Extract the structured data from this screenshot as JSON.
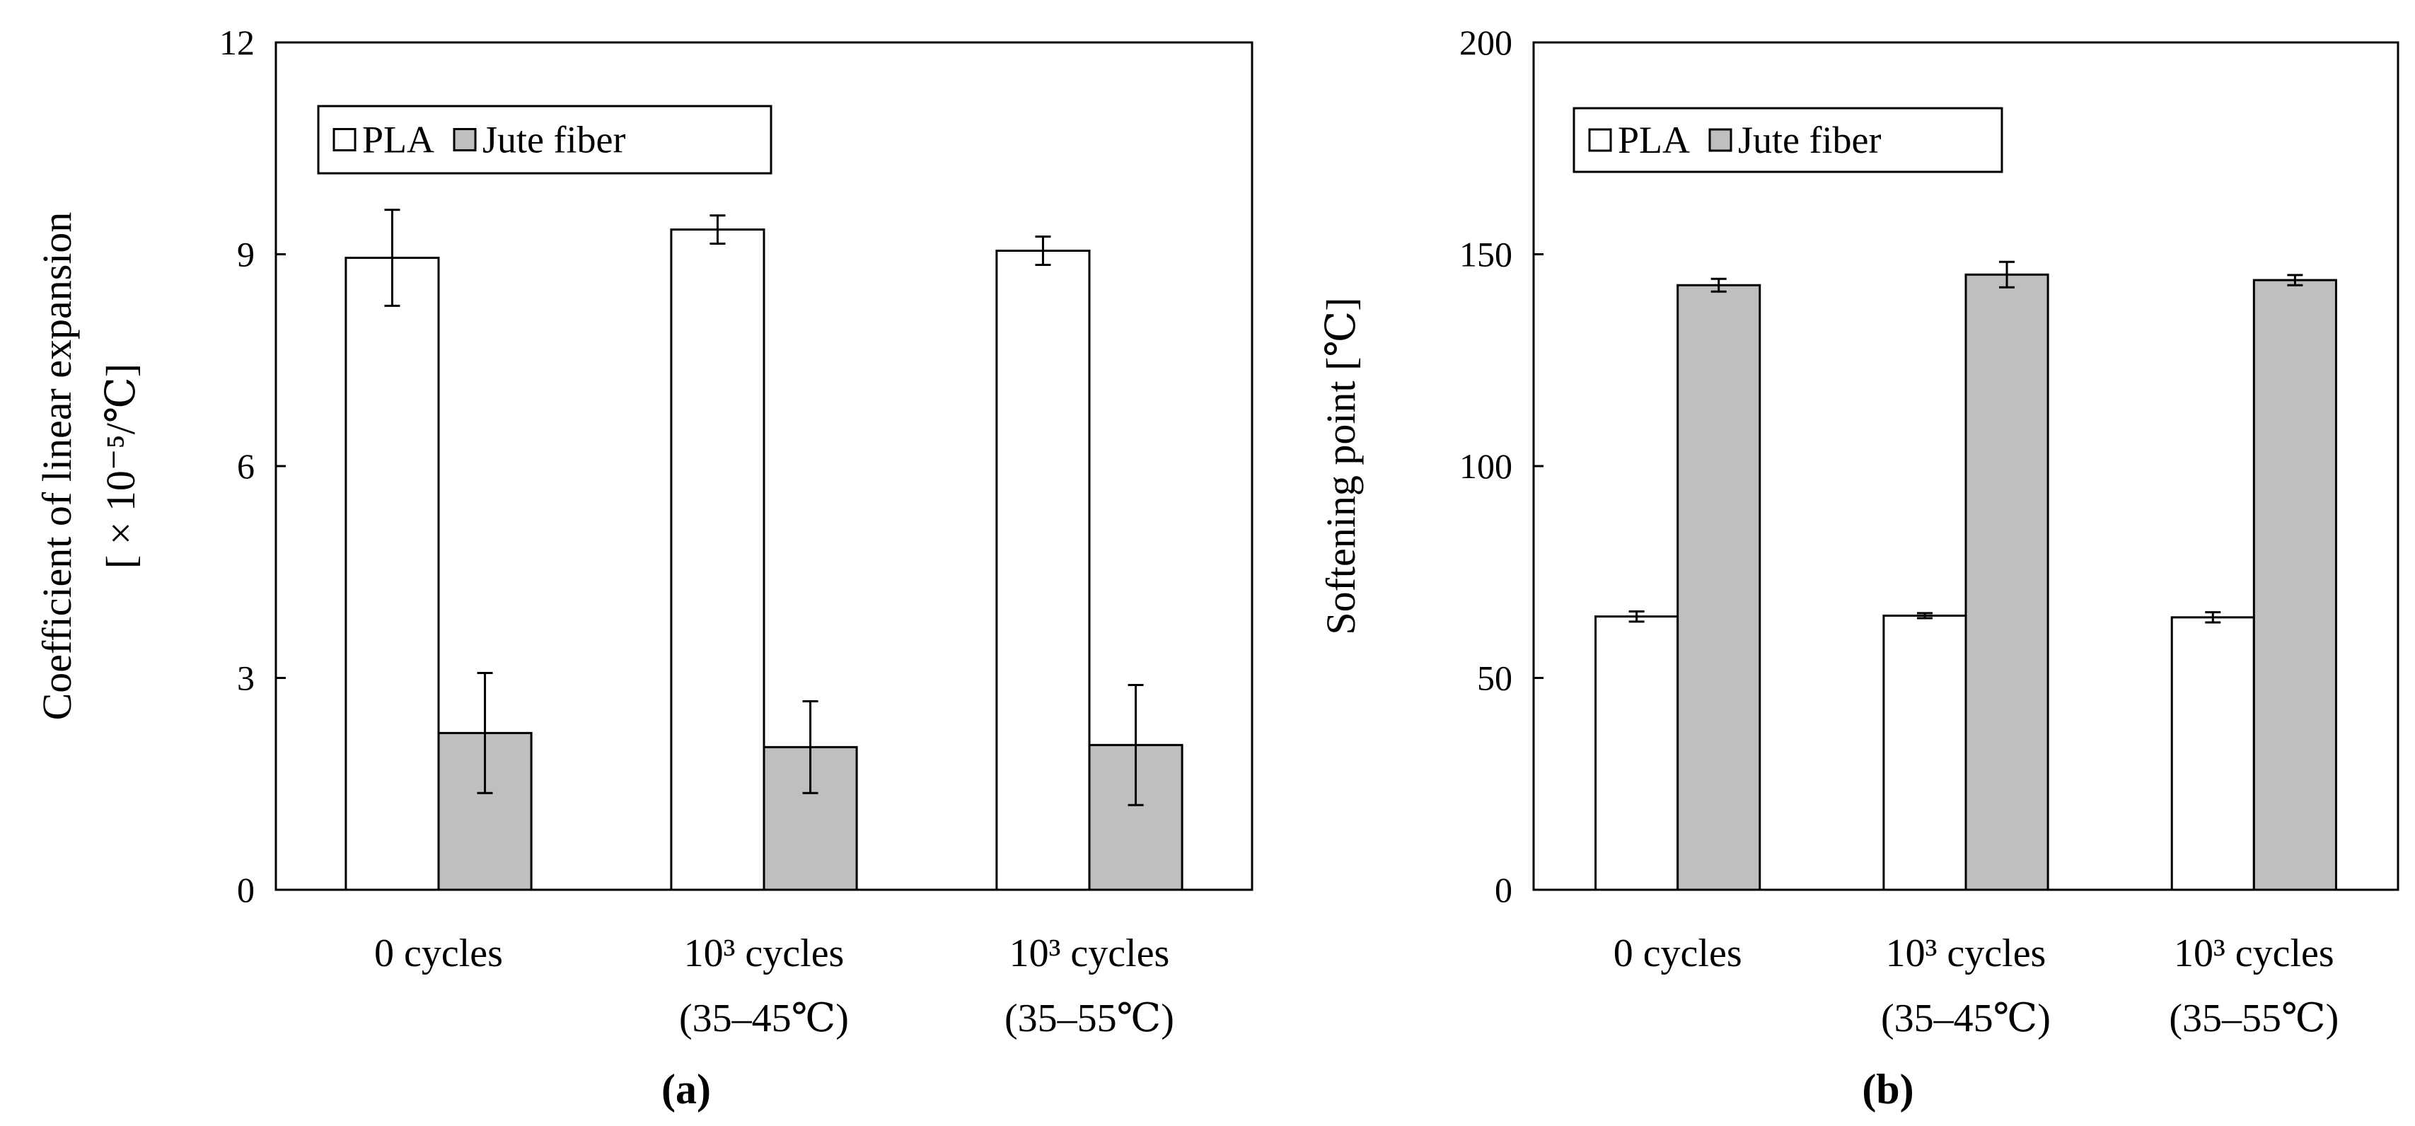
{
  "chart_data": [
    {
      "type": "bar",
      "panel_label": "(a)",
      "title": "",
      "ylabel": [
        "Coefficient of linear expansion",
        "[ × 10⁻⁵/℃]"
      ],
      "xlabel": "",
      "ylim": [
        0,
        12
      ],
      "yticks": [
        "0",
        "3",
        "6",
        "9",
        "12"
      ],
      "grid": false,
      "legend_position": "top-left",
      "categories": [
        [
          "0 cycles"
        ],
        [
          "10³  cycles",
          "(35–45℃)"
        ],
        [
          "10³  cycles",
          "(35–55℃)"
        ]
      ],
      "series": [
        {
          "name": "PLA",
          "color": "#ffffff",
          "values": [
            8.95,
            9.35,
            9.05
          ],
          "errors": [
            0.68,
            0.2,
            0.2
          ]
        },
        {
          "name": "Jute fiber",
          "color": "#bfbfbf",
          "values": [
            2.22,
            2.02,
            2.05
          ],
          "errors": [
            0.85,
            0.65,
            0.85
          ]
        }
      ]
    },
    {
      "type": "bar",
      "panel_label": "(b)",
      "title": "",
      "ylabel": [
        "Softening point [℃]"
      ],
      "xlabel": "",
      "ylim": [
        0,
        200
      ],
      "yticks": [
        "0",
        "50",
        "100",
        "150",
        "200"
      ],
      "grid": false,
      "legend_position": "top-left",
      "categories": [
        [
          "0 cycles"
        ],
        [
          "10³  cycles",
          "(35–45℃)"
        ],
        [
          "10³  cycles",
          "(35–55℃)"
        ]
      ],
      "series": [
        {
          "name": "PLA",
          "color": "#ffffff",
          "values": [
            64.5,
            64.7,
            64.3
          ],
          "errors": [
            1.2,
            0.6,
            1.2
          ]
        },
        {
          "name": "Jute fiber",
          "color": "#bfbfbf",
          "values": [
            142.7,
            145.2,
            143.9
          ],
          "errors": [
            1.5,
            3.0,
            1.2
          ]
        }
      ]
    }
  ]
}
